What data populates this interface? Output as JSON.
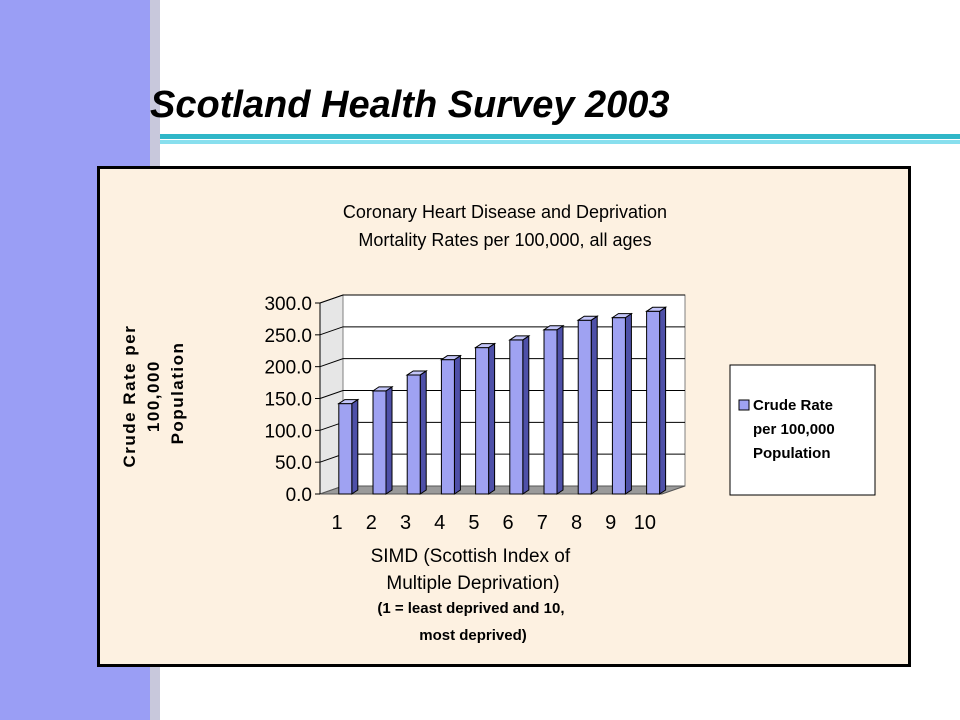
{
  "slide": {
    "title": "Scotland Health Survey 2003"
  },
  "colors": {
    "sidebar": "#9a9ef5",
    "accent": "#2fb7c8",
    "chart_background": "#fdf1e1",
    "bar_fill": "#9fa2f2"
  },
  "chart_data": {
    "type": "bar",
    "title": "Coronary Heart Disease and Deprivation",
    "subtitle": "Mortality Rates per 100,000, all ages",
    "ylabel": "Crude Rate per 100,000 Population",
    "xlabel": "SIMD (Scottish Index of Multiple Deprivation)",
    "xlabel_note": "(1 = least deprived and 10, most deprived)",
    "categories": [
      "1",
      "2",
      "3",
      "4",
      "5",
      "6",
      "7",
      "8",
      "9",
      "10"
    ],
    "series": [
      {
        "name": "Crude Rate per 100,000 Population",
        "values": [
          142,
          162,
          187,
          211,
          230,
          242,
          258,
          273,
          277,
          287
        ]
      }
    ],
    "ylim": [
      0,
      300
    ],
    "yticks": [
      "0.0",
      "50.0",
      "100.0",
      "150.0",
      "200.0",
      "250.0",
      "300.0"
    ],
    "grid": true,
    "legend": "right"
  }
}
